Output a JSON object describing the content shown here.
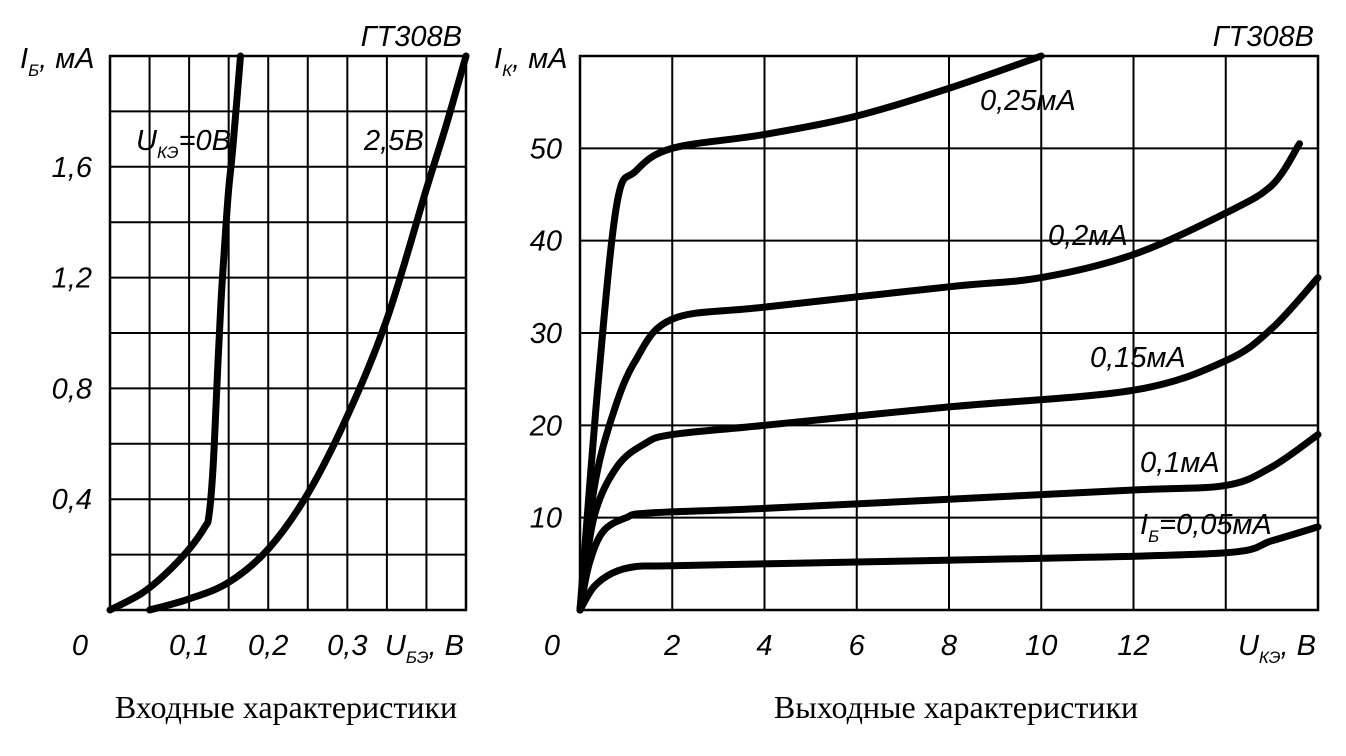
{
  "chart_data": [
    {
      "type": "line",
      "title": "ГТ308В",
      "caption": "Входные характеристики",
      "ylabel": {
        "main": "I",
        "sub": "Б",
        "unit": ", мА"
      },
      "xlabel": {
        "main": "U",
        "sub": "БЭ",
        "unit": ", В"
      },
      "origin_label": "0",
      "xlim": [
        0,
        0.45
      ],
      "ylim": [
        0,
        2.0
      ],
      "grid": true,
      "x_ticks": [
        {
          "value": 0.1,
          "label": "0,1"
        },
        {
          "value": 0.2,
          "label": "0,2"
        },
        {
          "value": 0.3,
          "label": "0,3"
        }
      ],
      "y_ticks": [
        {
          "value": 0.4,
          "label": "0,4"
        },
        {
          "value": 0.8,
          "label": "0,8"
        },
        {
          "value": 1.2,
          "label": "1,2"
        },
        {
          "value": 1.6,
          "label": "1,6"
        }
      ],
      "series": [
        {
          "name": {
            "main": "U",
            "sub": "КЭ",
            "rest": "=0В"
          },
          "points": [
            [
              0,
              0
            ],
            [
              0.04,
              0.06
            ],
            [
              0.07,
              0.13
            ],
            [
              0.1,
              0.22
            ],
            [
              0.12,
              0.3
            ],
            [
              0.125,
              0.34
            ],
            [
              0.13,
              0.5
            ],
            [
              0.135,
              0.8
            ],
            [
              0.14,
              1.1
            ],
            [
              0.145,
              1.32
            ],
            [
              0.15,
              1.52
            ],
            [
              0.155,
              1.66
            ],
            [
              0.165,
              2.0
            ]
          ]
        },
        {
          "name": {
            "main": "2,5В",
            "sub": "",
            "rest": ""
          },
          "points": [
            [
              0.05,
              0
            ],
            [
              0.1,
              0.04
            ],
            [
              0.15,
              0.1
            ],
            [
              0.2,
              0.22
            ],
            [
              0.25,
              0.42
            ],
            [
              0.3,
              0.7
            ],
            [
              0.35,
              1.05
            ],
            [
              0.4,
              1.52
            ],
            [
              0.425,
              1.75
            ],
            [
              0.45,
              2.0
            ]
          ]
        }
      ]
    },
    {
      "type": "line",
      "title": "ГТ308В",
      "caption": "Выходные характеристики",
      "ylabel": {
        "main": "I",
        "sub": "К",
        "unit": ", мА"
      },
      "xlabel": {
        "main": "U",
        "sub": "КЭ",
        "unit": ", В"
      },
      "origin_label": "0",
      "xlim": [
        0,
        16
      ],
      "ylim": [
        0,
        60
      ],
      "grid": true,
      "x_ticks": [
        {
          "value": 2,
          "label": "2"
        },
        {
          "value": 4,
          "label": "4"
        },
        {
          "value": 6,
          "label": "6"
        },
        {
          "value": 8,
          "label": "8"
        },
        {
          "value": 10,
          "label": "10"
        },
        {
          "value": 12,
          "label": "12"
        }
      ],
      "y_ticks": [
        {
          "value": 10,
          "label": "10"
        },
        {
          "value": 20,
          "label": "20"
        },
        {
          "value": 30,
          "label": "30"
        },
        {
          "value": 40,
          "label": "40"
        },
        {
          "value": 50,
          "label": "50"
        }
      ],
      "series": [
        {
          "name": {
            "main": "I",
            "sub": "Б",
            "rest": "=0,05мА"
          },
          "points": [
            [
              0,
              0
            ],
            [
              0.3,
              2.5
            ],
            [
              0.7,
              4
            ],
            [
              1.2,
              4.7
            ],
            [
              2,
              4.8
            ],
            [
              6,
              5.2
            ],
            [
              10,
              5.6
            ],
            [
              14,
              6.2
            ],
            [
              15,
              7.5
            ],
            [
              16,
              9
            ]
          ]
        },
        {
          "name": {
            "main": "0,1мА",
            "sub": "",
            "rest": ""
          },
          "points": [
            [
              0,
              0
            ],
            [
              0.2,
              5
            ],
            [
              0.5,
              8.5
            ],
            [
              1,
              10
            ],
            [
              1.5,
              10.5
            ],
            [
              4,
              11
            ],
            [
              8,
              12
            ],
            [
              12,
              13
            ],
            [
              14,
              13.5
            ],
            [
              15,
              15.5
            ],
            [
              16,
              19
            ]
          ]
        },
        {
          "name": {
            "main": "0,15мА",
            "sub": "",
            "rest": ""
          },
          "points": [
            [
              0,
              0
            ],
            [
              0.3,
              10
            ],
            [
              0.8,
              15.5
            ],
            [
              1.4,
              18
            ],
            [
              2,
              19
            ],
            [
              4,
              20
            ],
            [
              8,
              22
            ],
            [
              12,
              23.8
            ],
            [
              14,
              27
            ],
            [
              15,
              30.5
            ],
            [
              16,
              36
            ]
          ]
        },
        {
          "name": {
            "main": "0,2мА",
            "sub": "",
            "rest": ""
          },
          "points": [
            [
              0,
              0
            ],
            [
              0.3,
              13
            ],
            [
              0.7,
              21
            ],
            [
              1.2,
              27
            ],
            [
              2,
              31.5
            ],
            [
              4,
              32.8
            ],
            [
              8,
              35
            ],
            [
              10,
              36
            ],
            [
              12,
              38.5
            ],
            [
              14,
              43
            ],
            [
              15,
              46
            ],
            [
              15.6,
              50.5
            ]
          ]
        },
        {
          "name": {
            "main": "0,25мА",
            "sub": "",
            "rest": ""
          },
          "points": [
            [
              0,
              0
            ],
            [
              0.4,
              25
            ],
            [
              0.8,
              44
            ],
            [
              1.2,
              47.5
            ],
            [
              2,
              50
            ],
            [
              4,
              51.5
            ],
            [
              6,
              53.5
            ],
            [
              8,
              56.5
            ],
            [
              10,
              60
            ]
          ]
        }
      ]
    }
  ]
}
